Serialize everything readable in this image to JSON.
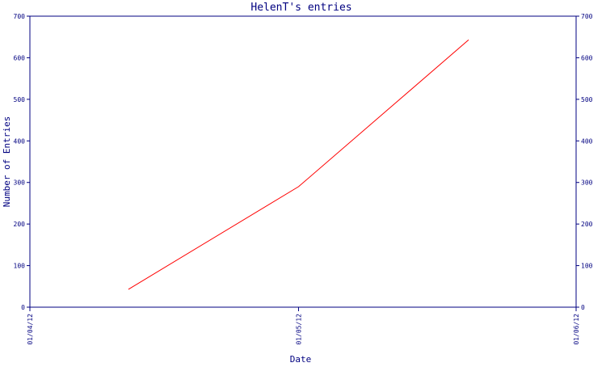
{
  "chart_data": {
    "type": "line",
    "title": "HelenT's entries",
    "xlabel": "Date",
    "ylabel": "Number of Entries",
    "x_tick_labels": [
      "01/04/12",
      "01/05/12",
      "01/06/12"
    ],
    "x_range": [
      "01/04/12",
      "01/06/12"
    ],
    "y_ticks": [
      0,
      100,
      200,
      300,
      400,
      500,
      600,
      700
    ],
    "ylim": [
      0,
      700
    ],
    "grid": false,
    "right_axis": true,
    "series": [
      {
        "color": "#ff0000",
        "x": [
          "12/04/12",
          "01/05/12",
          "20/05/12"
        ],
        "values": [
          43,
          290,
          643
        ]
      }
    ]
  },
  "colors": {
    "axis": "#000080",
    "title": "#000080",
    "label": "#000080",
    "line": "#ff0000"
  }
}
